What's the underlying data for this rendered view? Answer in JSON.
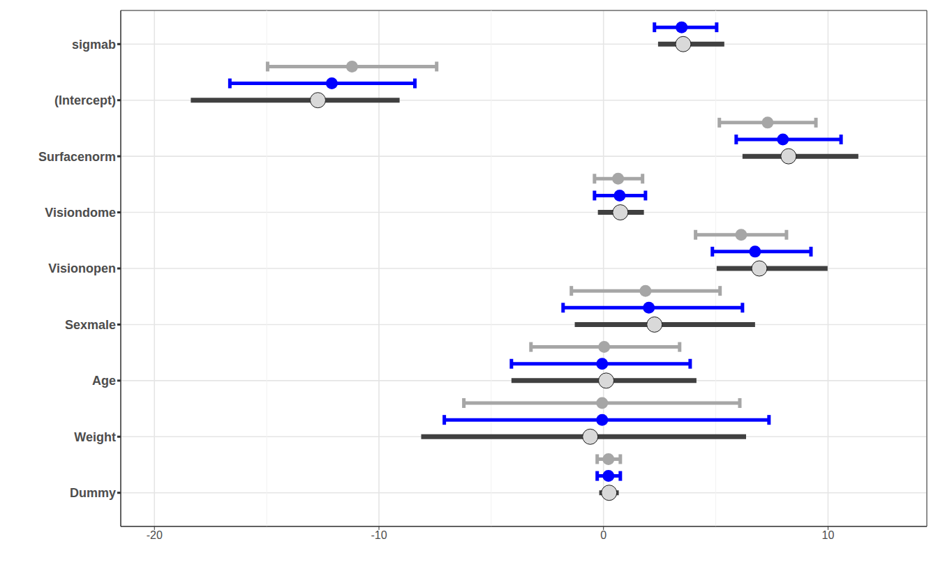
{
  "chart_data": {
    "type": "forest",
    "categories": [
      "sigmab",
      "(Intercept)",
      "Surfacenorm",
      "Visiondome",
      "Visionopen",
      "Sexmale",
      "Age",
      "Weight",
      "Dummy"
    ],
    "xlim": [
      -21.5,
      14.4
    ],
    "xticks": [
      -20,
      -10,
      0,
      10
    ],
    "grid": true,
    "tick_labels": true,
    "series": [
      {
        "color": "#a6a6a6",
        "marker": "circle",
        "line_style": "errorbar",
        "values": [
          null,
          -11.2,
          7.31,
          0.65,
          6.13,
          1.87,
          0.03,
          -0.06,
          0.22
        ],
        "lower": [
          null,
          -14.96,
          5.16,
          -0.4,
          4.1,
          -1.43,
          -3.23,
          -6.22,
          -0.28
        ],
        "upper": [
          null,
          -7.43,
          9.46,
          1.74,
          8.15,
          5.19,
          3.39,
          6.07,
          0.75
        ]
      },
      {
        "color": "#0000ff",
        "marker": "circle",
        "line_style": "errorbar",
        "values": [
          3.48,
          -12.1,
          7.99,
          0.72,
          6.75,
          2.02,
          -0.06,
          -0.06,
          0.22
        ],
        "lower": [
          2.27,
          -16.64,
          5.91,
          -0.4,
          4.85,
          -1.8,
          -4.1,
          -7.09,
          -0.28
        ],
        "upper": [
          5.04,
          -8.4,
          10.58,
          1.87,
          9.24,
          6.19,
          3.86,
          7.37,
          0.75
        ]
      },
      {
        "color": "#404040",
        "marker": "circle_outlined",
        "line_style": "bar",
        "values": [
          3.55,
          -12.72,
          8.24,
          0.75,
          6.94,
          2.27,
          0.12,
          -0.59,
          0.25
        ],
        "lower": [
          2.43,
          -18.38,
          6.19,
          -0.25,
          5.04,
          -1.28,
          -4.1,
          -8.12,
          -0.19
        ],
        "upper": [
          5.38,
          -9.08,
          11.35,
          1.8,
          9.98,
          6.75,
          4.14,
          6.35,
          0.68
        ]
      }
    ]
  }
}
